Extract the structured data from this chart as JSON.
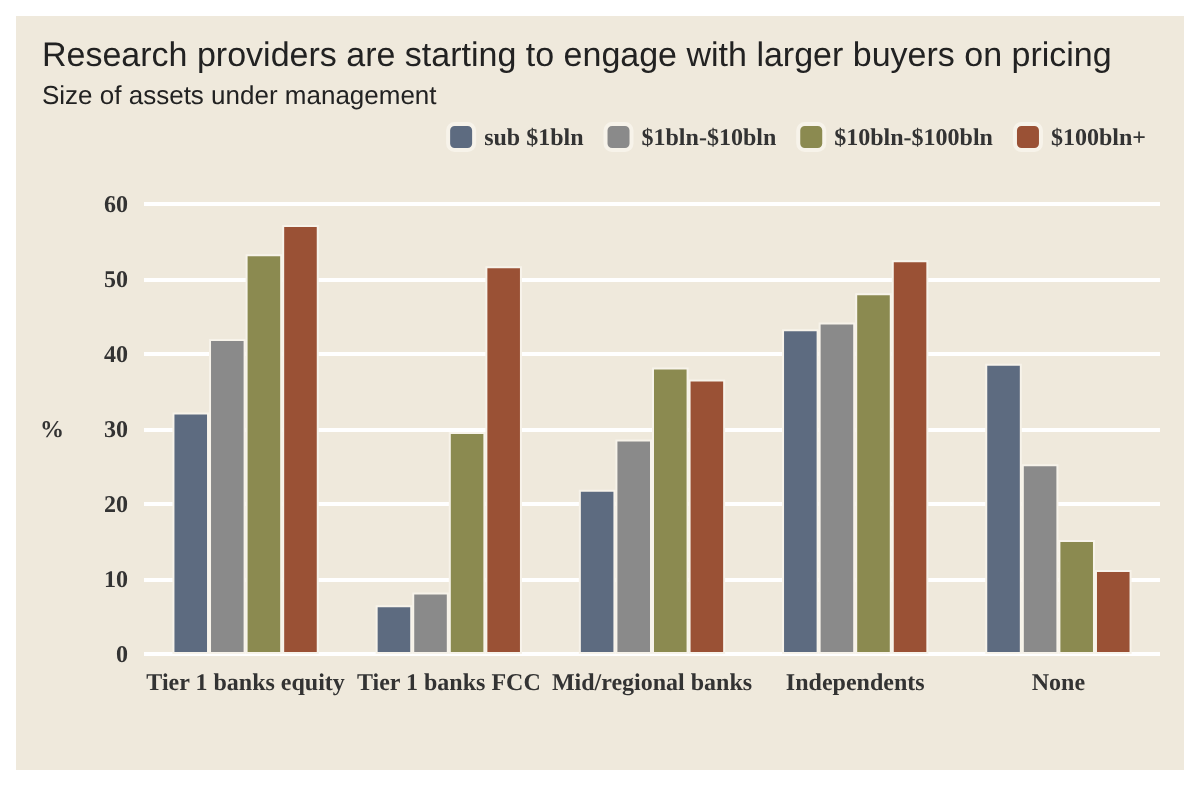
{
  "chart_data": {
    "type": "bar",
    "title": "Research providers are starting to engage with larger buyers on pricing",
    "subtitle": "Size of assets under management",
    "ylabel": "%",
    "categories": [
      "Tier 1 banks equity",
      "Tier 1 banks FCC",
      "Mid/regional banks",
      "Independents",
      "None"
    ],
    "series": [
      {
        "name": "sub $1bln",
        "color": "#5d6b80",
        "values": [
          32.2,
          6.5,
          21.9,
          43.3,
          38.7
        ]
      },
      {
        "name": "$1bln-$10bln",
        "color": "#8a8a8a",
        "values": [
          42,
          8.2,
          28.6,
          44.2,
          25.3
        ]
      },
      {
        "name": "$10bln-$100bln",
        "color": "#8b8a50",
        "values": [
          53.3,
          29.6,
          38.2,
          48.1,
          15.2
        ]
      },
      {
        "name": "$100bln+",
        "color": "#9a5135",
        "values": [
          57.2,
          51.7,
          36.6,
          52.5,
          11.2
        ]
      }
    ],
    "ylim": [
      0,
      60
    ],
    "yticks": [
      0,
      10,
      20,
      30,
      40,
      50,
      60
    ],
    "grid": "y",
    "legend": "top right"
  }
}
